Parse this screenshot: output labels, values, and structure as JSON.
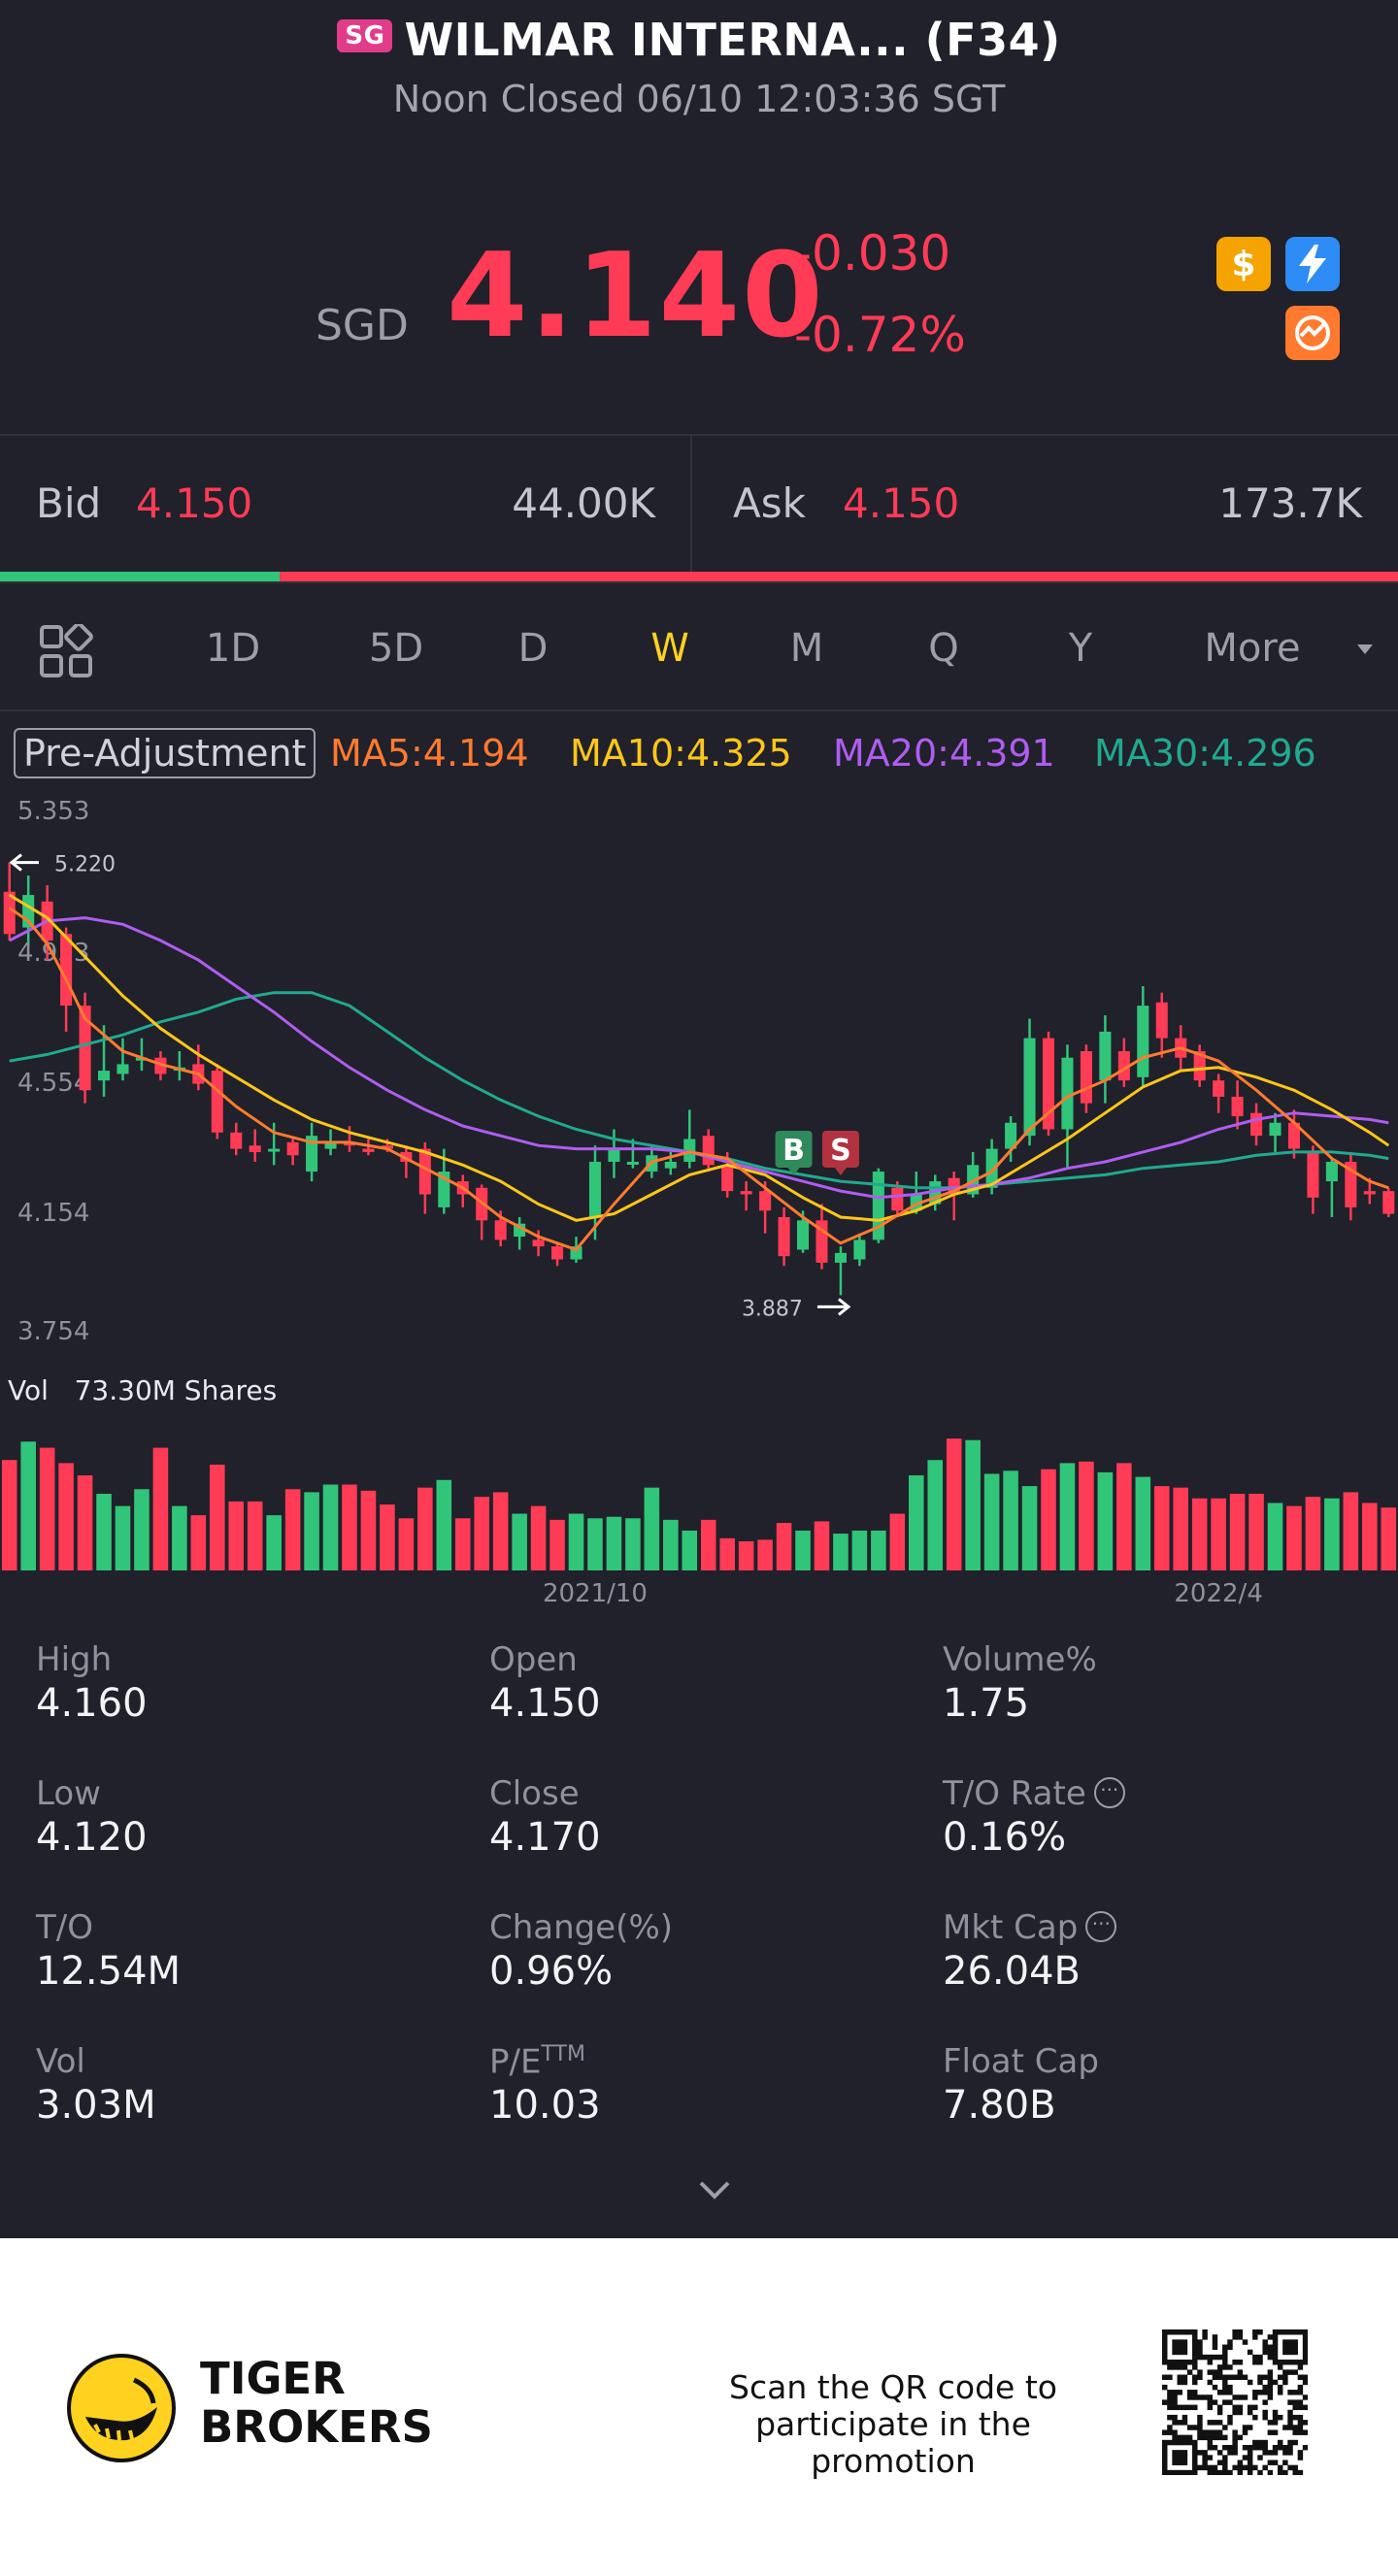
{
  "header": {
    "market_badge": "SG",
    "title": "WILMAR INTERNA... (F34)",
    "status": "Noon Closed 06/10 12:03:36 SGT"
  },
  "quote": {
    "currency": "SGD",
    "price": "4.140",
    "change": "-0.030",
    "change_pct": "-0.72%",
    "icons": [
      "dollar-icon",
      "lightning-icon",
      "options-icon"
    ]
  },
  "bidask": {
    "bid_label": "Bid",
    "bid_price": "4.150",
    "bid_size": "44.00K",
    "ask_label": "Ask",
    "ask_price": "4.150",
    "ask_size": "173.7K",
    "buy_ratio": 0.2
  },
  "tabs": [
    {
      "label": "1D",
      "active": false
    },
    {
      "label": "5D",
      "active": false
    },
    {
      "label": "D",
      "active": false
    },
    {
      "label": "W",
      "active": true
    },
    {
      "label": "M",
      "active": false
    },
    {
      "label": "Q",
      "active": false
    },
    {
      "label": "Y",
      "active": false
    },
    {
      "label": "More",
      "active": false
    }
  ],
  "ma_legend": {
    "adjust_label": "Pre-Adjustment",
    "ma5": "MA5:4.194",
    "ma10": "MA10:4.325",
    "ma20": "MA20:4.391",
    "ma30": "MA30:4.296"
  },
  "colors": {
    "up": "#31c57a",
    "down": "#ff3b55",
    "ma5": "#ff7a2f",
    "ma10": "#ffc61a",
    "ma20": "#b05cf0",
    "ma30": "#21a98f",
    "active_tab": "#ffd21f"
  },
  "chart_data": {
    "type": "candlestick",
    "y_ticks": [
      "5.353",
      "4.953",
      "4.554",
      "4.154",
      "3.754"
    ],
    "ylim": [
      3.754,
      5.353
    ],
    "high_marker": "5.220",
    "low_marker": "3.887",
    "x_labels": [
      "2021/10",
      "2022/4"
    ],
    "trade_markers": [
      "B",
      "S"
    ],
    "candles": [
      {
        "o": 5.13,
        "c": 5.0,
        "h": 5.22,
        "l": 4.98
      },
      {
        "o": 5.02,
        "c": 5.12,
        "h": 5.18,
        "l": 4.97
      },
      {
        "o": 5.1,
        "c": 4.98,
        "h": 5.15,
        "l": 4.92
      },
      {
        "o": 5.0,
        "c": 4.78,
        "h": 5.02,
        "l": 4.7
      },
      {
        "o": 4.78,
        "c": 4.52,
        "h": 4.82,
        "l": 4.48
      },
      {
        "o": 4.55,
        "c": 4.58,
        "h": 4.72,
        "l": 4.5
      },
      {
        "o": 4.57,
        "c": 4.6,
        "h": 4.68,
        "l": 4.55
      },
      {
        "o": 4.62,
        "c": 4.62,
        "h": 4.68,
        "l": 4.58
      },
      {
        "o": 4.62,
        "c": 4.57,
        "h": 4.64,
        "l": 4.55
      },
      {
        "o": 4.58,
        "c": 4.59,
        "h": 4.64,
        "l": 4.55
      },
      {
        "o": 4.6,
        "c": 4.54,
        "h": 4.66,
        "l": 4.52
      },
      {
        "o": 4.58,
        "c": 4.39,
        "h": 4.6,
        "l": 4.37
      },
      {
        "o": 4.39,
        "c": 4.34,
        "h": 4.42,
        "l": 4.32
      },
      {
        "o": 4.35,
        "c": 4.33,
        "h": 4.4,
        "l": 4.3
      },
      {
        "o": 4.34,
        "c": 4.34,
        "h": 4.42,
        "l": 4.29
      },
      {
        "o": 4.36,
        "c": 4.32,
        "h": 4.37,
        "l": 4.29
      },
      {
        "o": 4.27,
        "c": 4.38,
        "h": 4.42,
        "l": 4.24
      },
      {
        "o": 4.34,
        "c": 4.36,
        "h": 4.4,
        "l": 4.32
      },
      {
        "o": 4.36,
        "c": 4.35,
        "h": 4.41,
        "l": 4.33
      },
      {
        "o": 4.34,
        "c": 4.33,
        "h": 4.37,
        "l": 4.32
      },
      {
        "o": 4.35,
        "c": 4.34,
        "h": 4.37,
        "l": 4.33
      },
      {
        "o": 4.33,
        "c": 4.3,
        "h": 4.35,
        "l": 4.25
      },
      {
        "o": 4.34,
        "c": 4.2,
        "h": 4.36,
        "l": 4.14
      },
      {
        "o": 4.16,
        "c": 4.27,
        "h": 4.34,
        "l": 4.14
      },
      {
        "o": 4.24,
        "c": 4.2,
        "h": 4.26,
        "l": 4.16
      },
      {
        "o": 4.22,
        "c": 4.12,
        "h": 4.23,
        "l": 4.06
      },
      {
        "o": 4.12,
        "c": 4.06,
        "h": 4.15,
        "l": 4.04
      },
      {
        "o": 4.07,
        "c": 4.11,
        "h": 4.13,
        "l": 4.03
      },
      {
        "o": 4.06,
        "c": 4.04,
        "h": 4.09,
        "l": 4.01
      },
      {
        "o": 4.04,
        "c": 4.0,
        "h": 4.05,
        "l": 3.98
      },
      {
        "o": 4.0,
        "c": 4.04,
        "h": 4.07,
        "l": 3.99
      },
      {
        "o": 4.13,
        "c": 4.3,
        "h": 4.35,
        "l": 4.06
      },
      {
        "o": 4.3,
        "c": 4.34,
        "h": 4.4,
        "l": 4.25
      },
      {
        "o": 4.3,
        "c": 4.3,
        "h": 4.37,
        "l": 4.28
      },
      {
        "o": 4.27,
        "c": 4.32,
        "h": 4.35,
        "l": 4.25
      },
      {
        "o": 4.28,
        "c": 4.3,
        "h": 4.33,
        "l": 4.26
      },
      {
        "o": 4.3,
        "c": 4.37,
        "h": 4.46,
        "l": 4.28
      },
      {
        "o": 4.38,
        "c": 4.29,
        "h": 4.4,
        "l": 4.27
      },
      {
        "o": 4.29,
        "c": 4.21,
        "h": 4.33,
        "l": 4.19
      },
      {
        "o": 4.21,
        "c": 4.2,
        "h": 4.24,
        "l": 4.15
      },
      {
        "o": 4.21,
        "c": 4.15,
        "h": 4.24,
        "l": 4.08
      },
      {
        "o": 4.13,
        "c": 4.01,
        "h": 4.16,
        "l": 3.98
      },
      {
        "o": 4.03,
        "c": 4.12,
        "h": 4.15,
        "l": 4.02
      },
      {
        "o": 4.12,
        "c": 3.99,
        "h": 4.17,
        "l": 3.97
      },
      {
        "o": 3.99,
        "c": 4.02,
        "h": 4.04,
        "l": 3.89
      },
      {
        "o": 4.0,
        "c": 4.06,
        "h": 4.08,
        "l": 3.98
      },
      {
        "o": 4.06,
        "c": 4.27,
        "h": 4.28,
        "l": 4.05
      },
      {
        "o": 4.22,
        "c": 4.15,
        "h": 4.24,
        "l": 4.13
      },
      {
        "o": 4.15,
        "c": 4.2,
        "h": 4.27,
        "l": 4.14
      },
      {
        "o": 4.17,
        "c": 4.24,
        "h": 4.26,
        "l": 4.15
      },
      {
        "o": 4.25,
        "c": 4.2,
        "h": 4.27,
        "l": 4.12
      },
      {
        "o": 4.2,
        "c": 4.29,
        "h": 4.33,
        "l": 4.19
      },
      {
        "o": 4.22,
        "c": 4.34,
        "h": 4.37,
        "l": 4.2
      },
      {
        "o": 4.34,
        "c": 4.42,
        "h": 4.44,
        "l": 4.3
      },
      {
        "o": 4.38,
        "c": 4.68,
        "h": 4.74,
        "l": 4.35
      },
      {
        "o": 4.68,
        "c": 4.4,
        "h": 4.7,
        "l": 4.38
      },
      {
        "o": 4.4,
        "c": 4.62,
        "h": 4.66,
        "l": 4.28
      },
      {
        "o": 4.64,
        "c": 4.48,
        "h": 4.66,
        "l": 4.45
      },
      {
        "o": 4.55,
        "c": 4.7,
        "h": 4.75,
        "l": 4.48
      },
      {
        "o": 4.64,
        "c": 4.55,
        "h": 4.68,
        "l": 4.53
      },
      {
        "o": 4.56,
        "c": 4.78,
        "h": 4.84,
        "l": 4.53
      },
      {
        "o": 4.79,
        "c": 4.68,
        "h": 4.82,
        "l": 4.62
      },
      {
        "o": 4.68,
        "c": 4.62,
        "h": 4.72,
        "l": 4.58
      },
      {
        "o": 4.64,
        "c": 4.55,
        "h": 4.66,
        "l": 4.53
      },
      {
        "o": 4.55,
        "c": 4.5,
        "h": 4.57,
        "l": 4.45
      },
      {
        "o": 4.5,
        "c": 4.44,
        "h": 4.55,
        "l": 4.4
      },
      {
        "o": 4.45,
        "c": 4.38,
        "h": 4.48,
        "l": 4.35
      },
      {
        "o": 4.38,
        "c": 4.42,
        "h": 4.45,
        "l": 4.33
      },
      {
        "o": 4.42,
        "c": 4.34,
        "h": 4.46,
        "l": 4.31
      },
      {
        "o": 4.33,
        "c": 4.19,
        "h": 4.35,
        "l": 4.14
      },
      {
        "o": 4.24,
        "c": 4.3,
        "h": 4.31,
        "l": 4.13
      },
      {
        "o": 4.3,
        "c": 4.16,
        "h": 4.33,
        "l": 4.12
      },
      {
        "o": 4.21,
        "c": 4.2,
        "h": 4.25,
        "l": 4.17
      },
      {
        "o": 4.21,
        "c": 4.14,
        "h": 4.22,
        "l": 4.13
      }
    ],
    "ma_lines": {
      "ma5": [
        [
          0,
          5.08
        ],
        [
          1,
          5.04
        ],
        [
          2,
          4.97
        ],
        [
          3,
          4.86
        ],
        [
          4,
          4.74
        ],
        [
          6,
          4.64
        ],
        [
          8,
          4.6
        ],
        [
          10,
          4.57
        ],
        [
          12,
          4.47
        ],
        [
          14,
          4.39
        ],
        [
          16,
          4.36
        ],
        [
          18,
          4.36
        ],
        [
          20,
          4.34
        ],
        [
          22,
          4.28
        ],
        [
          24,
          4.22
        ],
        [
          26,
          4.13
        ],
        [
          28,
          4.07
        ],
        [
          30,
          4.03
        ],
        [
          32,
          4.17
        ],
        [
          34,
          4.3
        ],
        [
          36,
          4.33
        ],
        [
          38,
          4.31
        ],
        [
          40,
          4.22
        ],
        [
          42,
          4.13
        ],
        [
          44,
          4.05
        ],
        [
          46,
          4.1
        ],
        [
          48,
          4.17
        ],
        [
          50,
          4.21
        ],
        [
          52,
          4.27
        ],
        [
          54,
          4.4
        ],
        [
          56,
          4.5
        ],
        [
          58,
          4.55
        ],
        [
          60,
          4.62
        ],
        [
          62,
          4.65
        ],
        [
          64,
          4.61
        ],
        [
          66,
          4.52
        ],
        [
          68,
          4.42
        ],
        [
          70,
          4.31
        ],
        [
          72,
          4.24
        ],
        [
          73,
          4.22
        ]
      ],
      "ma10": [
        [
          0,
          5.12
        ],
        [
          2,
          5.05
        ],
        [
          4,
          4.93
        ],
        [
          6,
          4.81
        ],
        [
          8,
          4.71
        ],
        [
          10,
          4.63
        ],
        [
          12,
          4.56
        ],
        [
          14,
          4.49
        ],
        [
          16,
          4.43
        ],
        [
          18,
          4.39
        ],
        [
          20,
          4.36
        ],
        [
          22,
          4.33
        ],
        [
          24,
          4.29
        ],
        [
          26,
          4.24
        ],
        [
          28,
          4.17
        ],
        [
          30,
          4.12
        ],
        [
          32,
          4.14
        ],
        [
          34,
          4.2
        ],
        [
          36,
          4.26
        ],
        [
          38,
          4.29
        ],
        [
          40,
          4.26
        ],
        [
          42,
          4.19
        ],
        [
          44,
          4.13
        ],
        [
          46,
          4.12
        ],
        [
          48,
          4.15
        ],
        [
          50,
          4.2
        ],
        [
          52,
          4.23
        ],
        [
          54,
          4.3
        ],
        [
          56,
          4.37
        ],
        [
          58,
          4.45
        ],
        [
          60,
          4.53
        ],
        [
          62,
          4.58
        ],
        [
          64,
          4.59
        ],
        [
          66,
          4.56
        ],
        [
          68,
          4.52
        ],
        [
          70,
          4.46
        ],
        [
          72,
          4.39
        ],
        [
          73,
          4.35
        ]
      ],
      "ma20": [
        [
          0,
          4.98
        ],
        [
          2,
          5.04
        ],
        [
          4,
          5.05
        ],
        [
          6,
          5.03
        ],
        [
          8,
          4.98
        ],
        [
          10,
          4.92
        ],
        [
          12,
          4.84
        ],
        [
          14,
          4.76
        ],
        [
          16,
          4.67
        ],
        [
          18,
          4.59
        ],
        [
          20,
          4.52
        ],
        [
          22,
          4.46
        ],
        [
          24,
          4.41
        ],
        [
          26,
          4.38
        ],
        [
          28,
          4.35
        ],
        [
          30,
          4.34
        ],
        [
          32,
          4.34
        ],
        [
          34,
          4.34
        ],
        [
          36,
          4.33
        ],
        [
          38,
          4.3
        ],
        [
          40,
          4.27
        ],
        [
          42,
          4.24
        ],
        [
          44,
          4.21
        ],
        [
          46,
          4.19
        ],
        [
          48,
          4.2
        ],
        [
          50,
          4.22
        ],
        [
          52,
          4.23
        ],
        [
          54,
          4.25
        ],
        [
          56,
          4.28
        ],
        [
          58,
          4.3
        ],
        [
          60,
          4.33
        ],
        [
          62,
          4.36
        ],
        [
          64,
          4.4
        ],
        [
          66,
          4.43
        ],
        [
          68,
          4.45
        ],
        [
          70,
          4.44
        ],
        [
          72,
          4.43
        ],
        [
          73,
          4.42
        ]
      ],
      "ma30": [
        [
          0,
          4.61
        ],
        [
          2,
          4.63
        ],
        [
          4,
          4.66
        ],
        [
          6,
          4.69
        ],
        [
          8,
          4.73
        ],
        [
          10,
          4.76
        ],
        [
          12,
          4.8
        ],
        [
          14,
          4.82
        ],
        [
          16,
          4.82
        ],
        [
          18,
          4.78
        ],
        [
          20,
          4.7
        ],
        [
          22,
          4.62
        ],
        [
          24,
          4.55
        ],
        [
          26,
          4.49
        ],
        [
          28,
          4.44
        ],
        [
          30,
          4.4
        ],
        [
          32,
          4.37
        ],
        [
          34,
          4.35
        ],
        [
          36,
          4.33
        ],
        [
          38,
          4.31
        ],
        [
          40,
          4.28
        ],
        [
          42,
          4.26
        ],
        [
          44,
          4.24
        ],
        [
          46,
          4.23
        ],
        [
          48,
          4.22
        ],
        [
          50,
          4.22
        ],
        [
          52,
          4.23
        ],
        [
          54,
          4.24
        ],
        [
          56,
          4.25
        ],
        [
          58,
          4.26
        ],
        [
          60,
          4.28
        ],
        [
          62,
          4.29
        ],
        [
          64,
          4.3
        ],
        [
          66,
          4.32
        ],
        [
          68,
          4.33
        ],
        [
          70,
          4.33
        ],
        [
          72,
          4.32
        ],
        [
          73,
          4.31
        ]
      ]
    },
    "volume": {
      "label": "Vol",
      "value": "73.30M Shares",
      "bars": [
        0.72,
        0.84,
        0.8,
        0.7,
        0.62,
        0.5,
        0.42,
        0.53,
        0.8,
        0.42,
        0.36,
        0.69,
        0.45,
        0.45,
        0.36,
        0.53,
        0.51,
        0.56,
        0.56,
        0.52,
        0.43,
        0.34,
        0.54,
        0.59,
        0.34,
        0.48,
        0.51,
        0.37,
        0.42,
        0.33,
        0.37,
        0.34,
        0.35,
        0.34,
        0.54,
        0.33,
        0.26,
        0.33,
        0.21,
        0.19,
        0.2,
        0.31,
        0.26,
        0.32,
        0.24,
        0.26,
        0.26,
        0.37,
        0.62,
        0.72,
        0.86,
        0.85,
        0.63,
        0.65,
        0.55,
        0.66,
        0.7,
        0.71,
        0.64,
        0.7,
        0.61,
        0.55,
        0.54,
        0.47,
        0.47,
        0.5,
        0.5,
        0.44,
        0.42,
        0.48,
        0.47,
        0.51,
        0.44,
        0.41
      ]
    }
  },
  "stats": [
    {
      "label": "High",
      "value": "4.160",
      "info": false
    },
    {
      "label": "Open",
      "value": "4.150",
      "info": false
    },
    {
      "label": "Volume%",
      "value": "1.75",
      "info": false
    },
    {
      "label": "Low",
      "value": "4.120",
      "info": false
    },
    {
      "label": "Close",
      "value": "4.170",
      "info": false
    },
    {
      "label": "T/O Rate",
      "value": "0.16%",
      "info": true
    },
    {
      "label": "T/O",
      "value": "12.54M",
      "info": false
    },
    {
      "label": "Change(%)",
      "value": "0.96%",
      "info": false
    },
    {
      "label": "Mkt Cap",
      "value": "26.04B",
      "info": true
    },
    {
      "label": "Vol",
      "value": "3.03M",
      "info": false
    },
    {
      "label": "P/E",
      "label_sup": "TTM",
      "value": "10.03",
      "info": false
    },
    {
      "label": "Float Cap",
      "value": "7.80B",
      "info": false
    }
  ],
  "footer": {
    "brand_line1": "TIGER",
    "brand_line2": "BROKERS",
    "promo_line1": "Scan the QR code to",
    "promo_line2": "participate in the promotion"
  }
}
